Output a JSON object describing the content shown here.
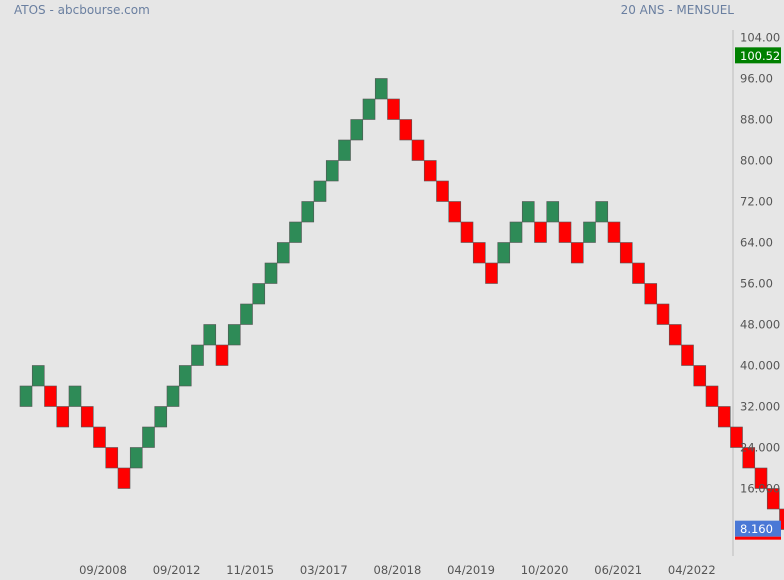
{
  "header": {
    "title": "ATOS - abcbourse.com",
    "period": "20 ANS - MENSUEL"
  },
  "colors": {
    "background": "#e6e6e6",
    "up": "#2e8b57",
    "down": "#ff0000",
    "box_edge": "#555555",
    "last_price_badge": "#008000",
    "current_price_badge": "#4a78d6",
    "header_text": "#6a7fa0"
  },
  "chart_data": {
    "type": "renko",
    "box_size": 4,
    "ylim": [
      7,
      105
    ],
    "y_ticks": [
      "104.00",
      "96.00",
      "88.00",
      "80.00",
      "72.00",
      "64.00",
      "56.00",
      "48.000",
      "40.000",
      "32.000",
      "24.000",
      "16.000"
    ],
    "x_ticks": [
      "09/2008",
      "09/2012",
      "11/2015",
      "03/2017",
      "08/2018",
      "04/2019",
      "10/2020",
      "06/2021",
      "04/2022"
    ],
    "bricks": [
      {
        "low": 32,
        "high": 36,
        "dir": "up"
      },
      {
        "low": 36,
        "high": 40,
        "dir": "up"
      },
      {
        "low": 32,
        "high": 36,
        "dir": "down"
      },
      {
        "low": 28,
        "high": 32,
        "dir": "down"
      },
      {
        "low": 32,
        "high": 36,
        "dir": "up"
      },
      {
        "low": 28,
        "high": 32,
        "dir": "down"
      },
      {
        "low": 24,
        "high": 28,
        "dir": "down"
      },
      {
        "low": 20,
        "high": 24,
        "dir": "down"
      },
      {
        "low": 16,
        "high": 20,
        "dir": "down"
      },
      {
        "low": 20,
        "high": 24,
        "dir": "up"
      },
      {
        "low": 24,
        "high": 28,
        "dir": "up"
      },
      {
        "low": 28,
        "high": 32,
        "dir": "up"
      },
      {
        "low": 32,
        "high": 36,
        "dir": "up"
      },
      {
        "low": 36,
        "high": 40,
        "dir": "up"
      },
      {
        "low": 40,
        "high": 44,
        "dir": "up"
      },
      {
        "low": 44,
        "high": 48,
        "dir": "up"
      },
      {
        "low": 40,
        "high": 44,
        "dir": "down"
      },
      {
        "low": 44,
        "high": 48,
        "dir": "up"
      },
      {
        "low": 48,
        "high": 52,
        "dir": "up"
      },
      {
        "low": 52,
        "high": 56,
        "dir": "up"
      },
      {
        "low": 56,
        "high": 60,
        "dir": "up"
      },
      {
        "low": 60,
        "high": 64,
        "dir": "up"
      },
      {
        "low": 64,
        "high": 68,
        "dir": "up"
      },
      {
        "low": 68,
        "high": 72,
        "dir": "up"
      },
      {
        "low": 72,
        "high": 76,
        "dir": "up"
      },
      {
        "low": 76,
        "high": 80,
        "dir": "up"
      },
      {
        "low": 80,
        "high": 84,
        "dir": "up"
      },
      {
        "low": 84,
        "high": 88,
        "dir": "up"
      },
      {
        "low": 88,
        "high": 92,
        "dir": "up"
      },
      {
        "low": 92,
        "high": 96,
        "dir": "up"
      },
      {
        "low": 88,
        "high": 92,
        "dir": "down"
      },
      {
        "low": 84,
        "high": 88,
        "dir": "down"
      },
      {
        "low": 80,
        "high": 84,
        "dir": "down"
      },
      {
        "low": 76,
        "high": 80,
        "dir": "down"
      },
      {
        "low": 72,
        "high": 76,
        "dir": "down"
      },
      {
        "low": 68,
        "high": 72,
        "dir": "down"
      },
      {
        "low": 64,
        "high": 68,
        "dir": "down"
      },
      {
        "low": 60,
        "high": 64,
        "dir": "down"
      },
      {
        "low": 56,
        "high": 60,
        "dir": "down"
      },
      {
        "low": 60,
        "high": 64,
        "dir": "up"
      },
      {
        "low": 64,
        "high": 68,
        "dir": "up"
      },
      {
        "low": 68,
        "high": 72,
        "dir": "up"
      },
      {
        "low": 64,
        "high": 68,
        "dir": "down"
      },
      {
        "low": 68,
        "high": 72,
        "dir": "up"
      },
      {
        "low": 64,
        "high": 68,
        "dir": "down"
      },
      {
        "low": 60,
        "high": 64,
        "dir": "down"
      },
      {
        "low": 64,
        "high": 68,
        "dir": "up"
      },
      {
        "low": 68,
        "high": 72,
        "dir": "up"
      },
      {
        "low": 64,
        "high": 68,
        "dir": "down"
      },
      {
        "low": 60,
        "high": 64,
        "dir": "down"
      },
      {
        "low": 56,
        "high": 60,
        "dir": "down"
      },
      {
        "low": 52,
        "high": 56,
        "dir": "down"
      },
      {
        "low": 48,
        "high": 52,
        "dir": "down"
      },
      {
        "low": 44,
        "high": 48,
        "dir": "down"
      },
      {
        "low": 40,
        "high": 44,
        "dir": "down"
      },
      {
        "low": 36,
        "high": 40,
        "dir": "down"
      },
      {
        "low": 32,
        "high": 36,
        "dir": "down"
      },
      {
        "low": 28,
        "high": 32,
        "dir": "down"
      },
      {
        "low": 24,
        "high": 28,
        "dir": "down"
      },
      {
        "low": 20,
        "high": 24,
        "dir": "down"
      },
      {
        "low": 16,
        "high": 20,
        "dir": "down"
      },
      {
        "low": 12,
        "high": 16,
        "dir": "down"
      },
      {
        "low": 8,
        "high": 12,
        "dir": "down"
      }
    ],
    "markers": [
      {
        "value": 100.52,
        "label": "100.52",
        "kind": "last_price"
      },
      {
        "value": 8.16,
        "label": "8.160",
        "kind": "current_price"
      }
    ],
    "grid": false,
    "legend": "none"
  }
}
